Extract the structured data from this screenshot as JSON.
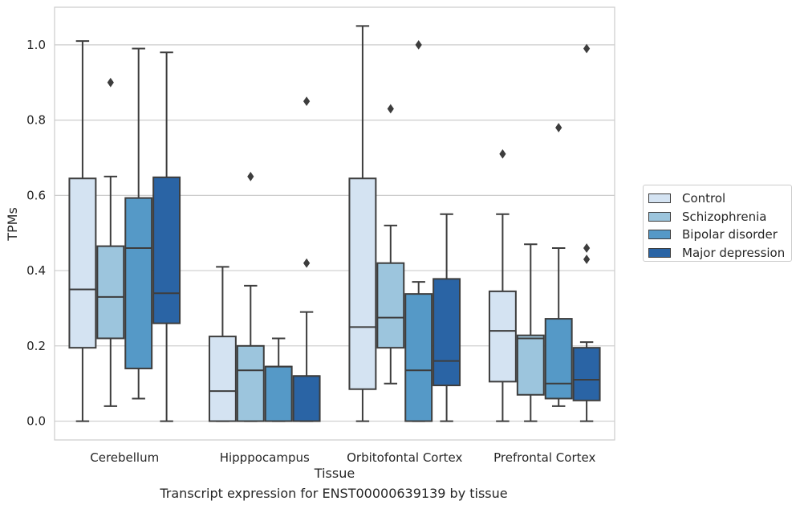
{
  "caption": "Transcript expression for ENST00000639139 by tissue",
  "chart_data": {
    "type": "box",
    "xlabel": "Tissue",
    "ylabel": "TPMs",
    "ylim": [
      -0.05,
      1.1
    ],
    "yticks": [
      "0.0",
      "0.2",
      "0.4",
      "0.6",
      "0.8",
      "1.0"
    ],
    "grid": true,
    "legend_position": "right",
    "categories": [
      "Cerebellum",
      "Hipppocampus",
      "Orbitofontal Cortex",
      "Prefrontal Cortex"
    ],
    "series": [
      {
        "name": "Control",
        "color": "#d4e3f2",
        "boxes": [
          {
            "min": 0.0,
            "q1": 0.195,
            "median": 0.35,
            "q3": 0.645,
            "max": 1.01,
            "outliers": []
          },
          {
            "min": 0.0,
            "q1": 0.0,
            "median": 0.08,
            "q3": 0.225,
            "max": 0.41,
            "outliers": []
          },
          {
            "min": 0.0,
            "q1": 0.085,
            "median": 0.25,
            "q3": 0.645,
            "max": 1.05,
            "outliers": []
          },
          {
            "min": 0.0,
            "q1": 0.105,
            "median": 0.24,
            "q3": 0.345,
            "max": 0.55,
            "outliers": [
              0.71
            ]
          }
        ]
      },
      {
        "name": "Schizophrenia",
        "color": "#9cc5dd",
        "boxes": [
          {
            "min": 0.04,
            "q1": 0.22,
            "median": 0.33,
            "q3": 0.465,
            "max": 0.65,
            "outliers": [
              0.9
            ]
          },
          {
            "min": 0.0,
            "q1": 0.0,
            "median": 0.135,
            "q3": 0.2,
            "max": 0.36,
            "outliers": [
              0.65
            ]
          },
          {
            "min": 0.1,
            "q1": 0.195,
            "median": 0.275,
            "q3": 0.42,
            "max": 0.52,
            "outliers": [
              0.83
            ]
          },
          {
            "min": 0.0,
            "q1": 0.07,
            "median": 0.22,
            "q3": 0.228,
            "max": 0.47,
            "outliers": []
          }
        ]
      },
      {
        "name": "Bipolar disorder",
        "color": "#5599c7",
        "boxes": [
          {
            "min": 0.06,
            "q1": 0.14,
            "median": 0.46,
            "q3": 0.593,
            "max": 0.99,
            "outliers": []
          },
          {
            "min": 0.0,
            "q1": 0.0,
            "median": 0.145,
            "q3": 0.145,
            "max": 0.22,
            "outliers": []
          },
          {
            "min": 0.0,
            "q1": 0.0,
            "median": 0.135,
            "q3": 0.338,
            "max": 0.37,
            "outliers": [
              1.0
            ]
          },
          {
            "min": 0.04,
            "q1": 0.06,
            "median": 0.1,
            "q3": 0.272,
            "max": 0.46,
            "outliers": [
              0.78
            ]
          }
        ]
      },
      {
        "name": "Major depression",
        "color": "#2a64a5",
        "boxes": [
          {
            "min": 0.0,
            "q1": 0.26,
            "median": 0.34,
            "q3": 0.648,
            "max": 0.98,
            "outliers": []
          },
          {
            "min": 0.0,
            "q1": 0.0,
            "median": 0.12,
            "q3": 0.12,
            "max": 0.29,
            "outliers": [
              0.42,
              0.85
            ]
          },
          {
            "min": 0.0,
            "q1": 0.095,
            "median": 0.16,
            "q3": 0.378,
            "max": 0.55,
            "outliers": []
          },
          {
            "min": 0.0,
            "q1": 0.055,
            "median": 0.11,
            "q3": 0.195,
            "max": 0.21,
            "outliers": [
              0.43,
              0.46,
              0.99
            ]
          }
        ]
      }
    ]
  }
}
